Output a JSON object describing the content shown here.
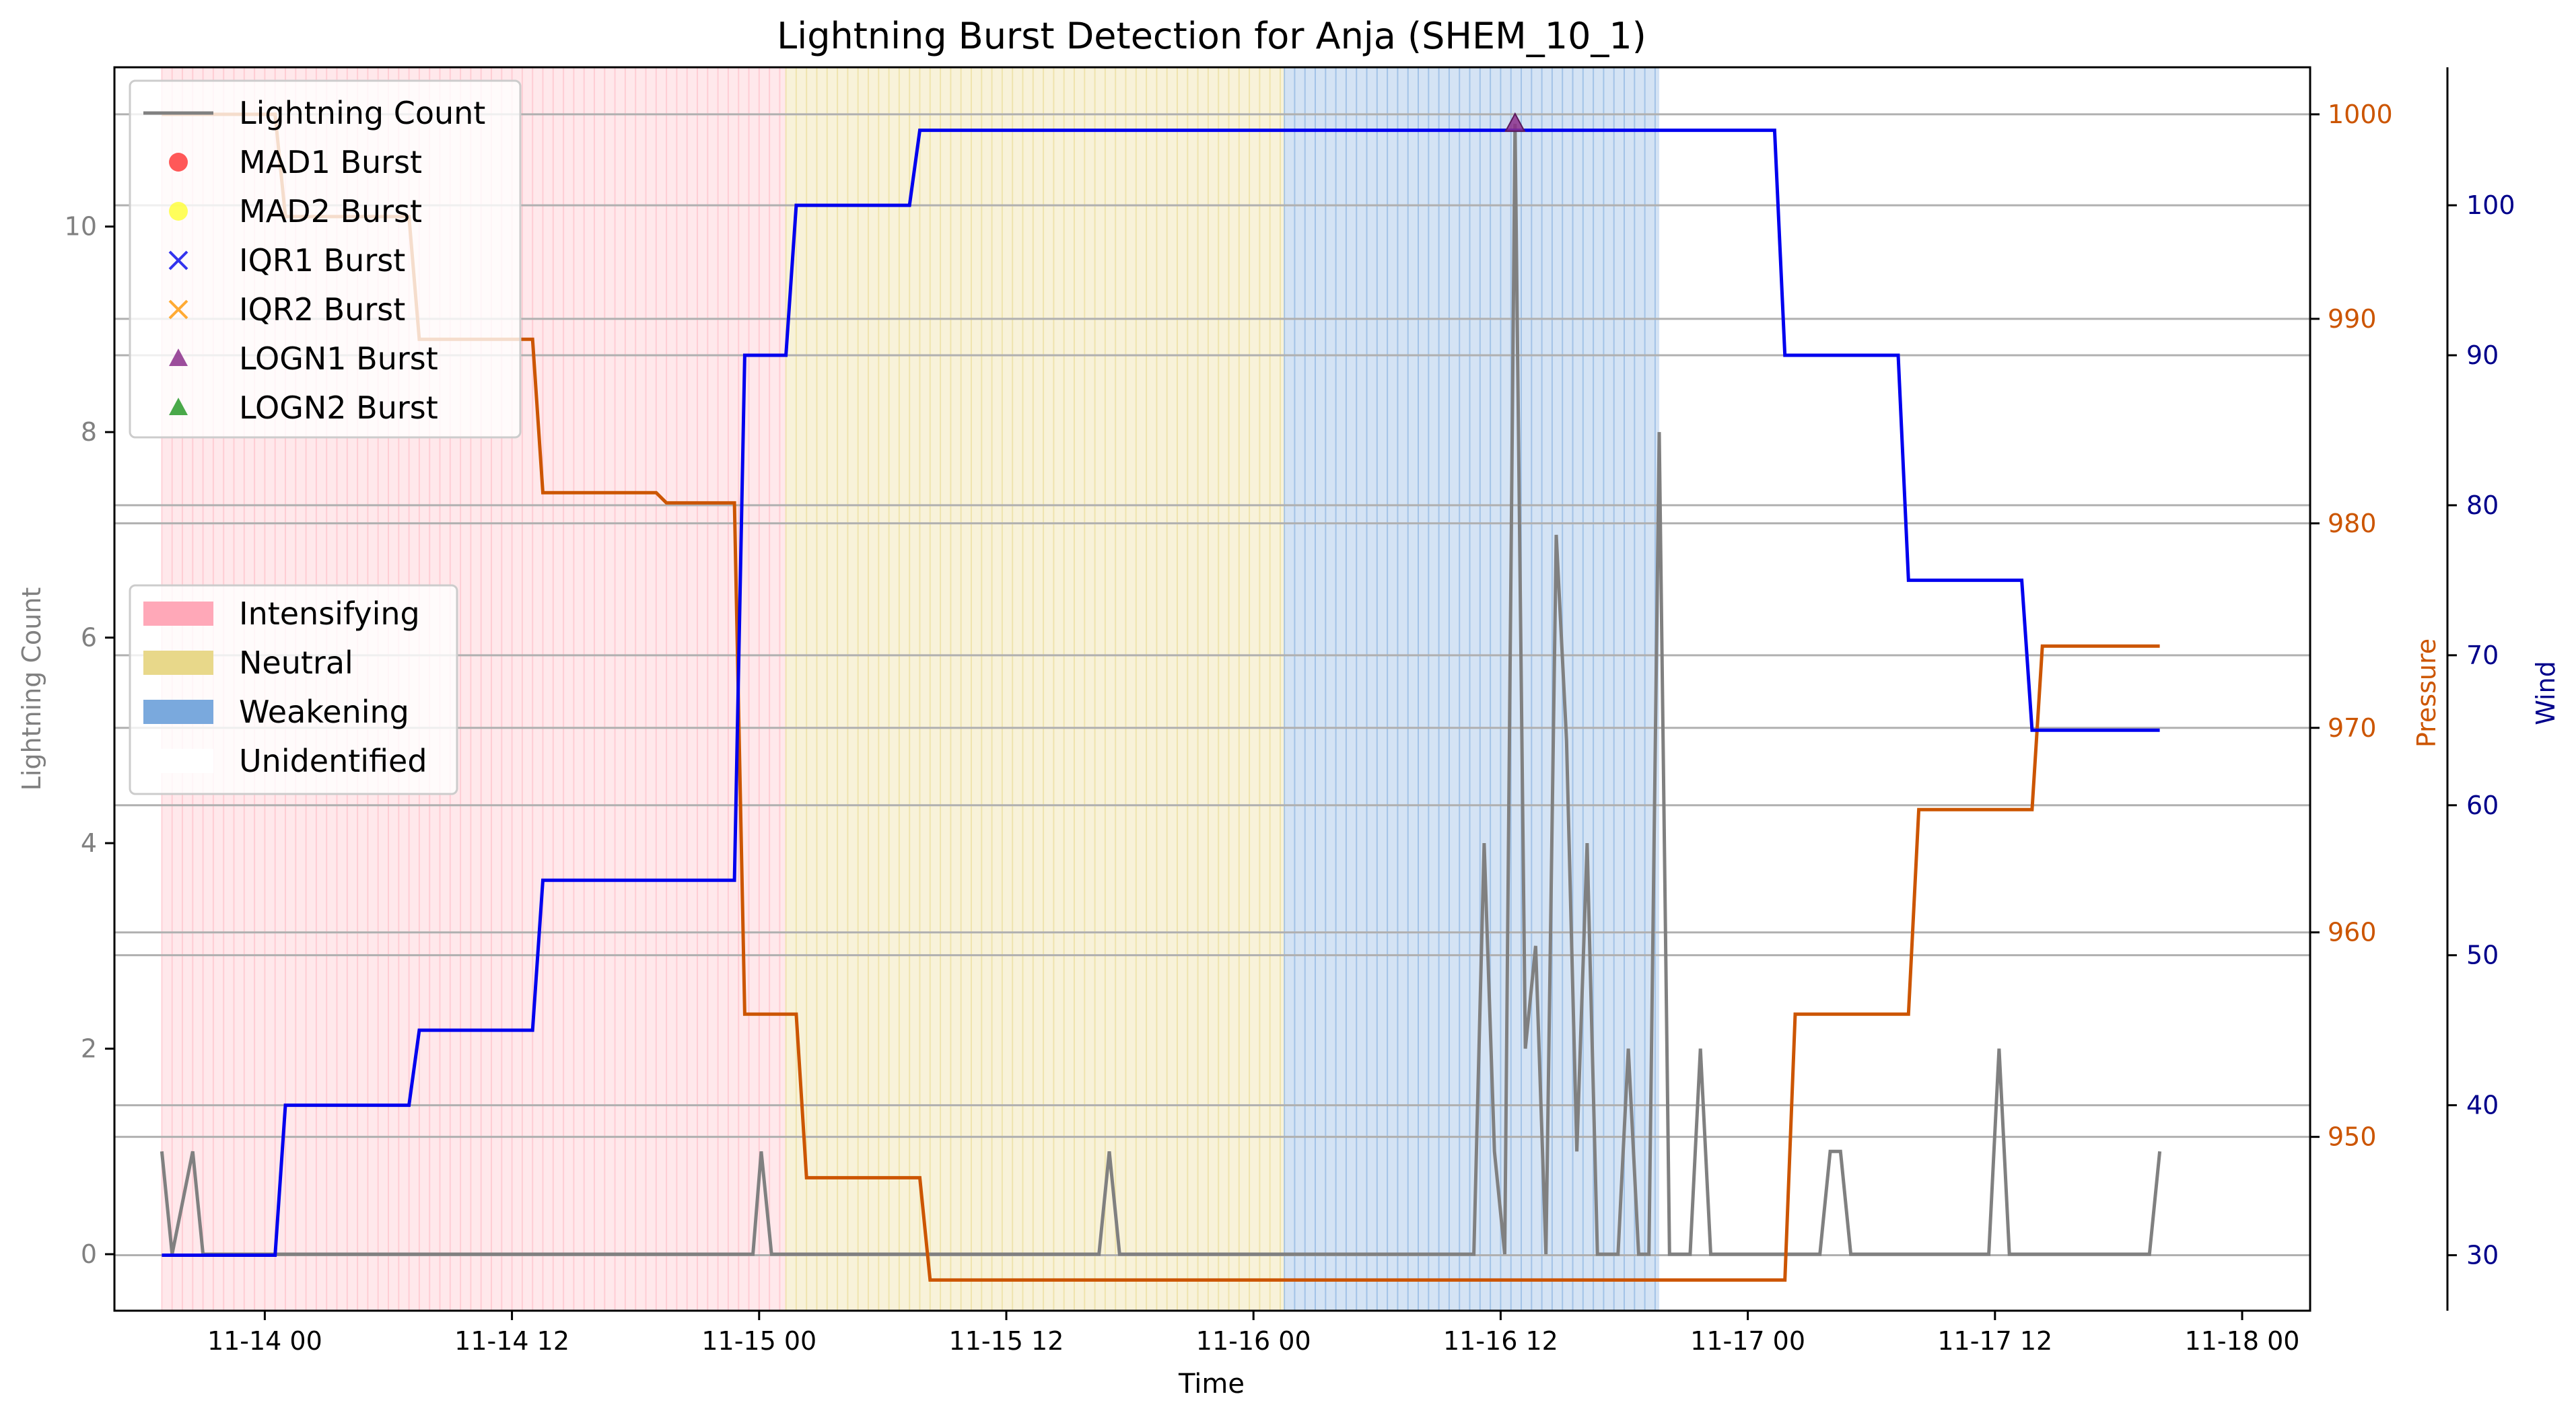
{
  "chart_data": {
    "type": "line",
    "title": "Lightning Burst Detection for Anja (SHEM_10_1)",
    "xlabel": "Time",
    "ylabel_left": "Lightning Count",
    "ylabel_right_pressure": "Pressure",
    "ylabel_right_wind": "Wind",
    "x_range_hours": [
      -7.3,
      99.3
    ],
    "x_ticks": [
      {
        "h": 0,
        "label": "11-14 00"
      },
      {
        "h": 12,
        "label": "11-14 12"
      },
      {
        "h": 24,
        "label": "11-15 00"
      },
      {
        "h": 36,
        "label": "11-15 12"
      },
      {
        "h": 48,
        "label": "11-16 00"
      },
      {
        "h": 60,
        "label": "11-16 12"
      },
      {
        "h": 72,
        "label": "11-17 00"
      },
      {
        "h": 84,
        "label": "11-17 12"
      },
      {
        "h": 96,
        "label": "11-18 00"
      }
    ],
    "x_start_label": "11-14 00",
    "ylim_left": [
      -0.55,
      11.55
    ],
    "yticks_left": [
      0,
      2,
      4,
      6,
      8,
      10
    ],
    "ylim_pressure": [
      941.5,
      1002.3
    ],
    "yticks_pressure": [
      950,
      960,
      970,
      980,
      990,
      1000
    ],
    "ylim_wind": [
      26.3,
      109.2
    ],
    "yticks_wind": [
      30,
      40,
      50,
      60,
      70,
      80,
      90,
      100
    ],
    "grid_horizontal": true,
    "colors": {
      "lightning": "#808080",
      "pressure": "#cc5500",
      "wind": "#0000ee",
      "pressure_axis": "#cc5500",
      "wind_axis": "#00008b",
      "left_axis": "#808080",
      "intensifying": "#ffb6c1",
      "neutral": "#e8d88a",
      "weakening": "#7aa9dd"
    },
    "phases": [
      {
        "name": "Intensifying",
        "start_h": -5,
        "end_h": 25.3
      },
      {
        "name": "Neutral",
        "start_h": 25.3,
        "end_h": 49.5
      },
      {
        "name": "Weakening",
        "start_h": 49.5,
        "end_h": 67.7
      }
    ],
    "series": [
      {
        "name": "Lightning Count",
        "x_hours": [
          -5,
          -4.5,
          -3.5,
          -3,
          -2.5,
          0,
          10,
          23.7,
          24.1,
          24.6,
          25,
          40,
          40.5,
          41,
          41.5,
          50,
          58.7,
          59.2,
          59.7,
          60.2,
          60.7,
          61.2,
          61.7,
          62.2,
          62.7,
          63.2,
          63.7,
          64.2,
          64.7,
          65.2,
          65.7,
          66.2,
          66.7,
          67.2,
          67.7,
          68.2,
          69.2,
          69.7,
          70.2,
          72,
          75.5,
          76,
          76.5,
          77,
          80,
          83.7,
          84.2,
          84.7,
          85.5,
          91.5,
          92
        ],
        "y": [
          1,
          0,
          1,
          0,
          0,
          0,
          0,
          0,
          1,
          0,
          0,
          0,
          0,
          1,
          0,
          0,
          0,
          4,
          1,
          0,
          11,
          2,
          3,
          0,
          7,
          5,
          1,
          4,
          0,
          0,
          0,
          2,
          0,
          0,
          8,
          0,
          0,
          2,
          0,
          0,
          0,
          1,
          1,
          0,
          0,
          0,
          2,
          0,
          0,
          0,
          1
        ]
      },
      {
        "name": "Pressure",
        "x_hours": [
          -5,
          0.5,
          1,
          7,
          7.5,
          13,
          13.5,
          19,
          19.5,
          22.8,
          23.3,
          25.8,
          26.3,
          31.8,
          32.3,
          73.8,
          74.3,
          79.8,
          80.3,
          85.8,
          86.3,
          92
        ],
        "y": [
          1000,
          1000,
          995,
          995,
          989,
          989,
          981.5,
          981.5,
          981,
          981,
          956,
          956,
          948,
          948,
          943,
          943,
          956,
          956,
          966,
          966,
          974,
          974
        ]
      },
      {
        "name": "Wind",
        "x_hours": [
          -5,
          0.5,
          1,
          7,
          7.5,
          13,
          13.5,
          19,
          19.5,
          22.8,
          23.3,
          25.3,
          25.8,
          31.3,
          31.8,
          73.3,
          73.8,
          79.3,
          79.8,
          85.3,
          85.8,
          92
        ],
        "y": [
          30,
          30,
          40,
          40,
          45,
          45,
          55,
          55,
          55,
          55,
          90,
          90,
          100,
          100,
          105,
          105,
          90,
          90,
          75,
          75,
          65,
          65
        ]
      }
    ],
    "bursts": [
      {
        "type": "LOGN1 Burst",
        "x_hour": 60.7,
        "y": 11
      }
    ],
    "legend_top": [
      {
        "label": "Lightning Count",
        "marker": "line",
        "color": "#808080"
      },
      {
        "label": "MAD1 Burst",
        "marker": "circle",
        "color": "#ff3030"
      },
      {
        "label": "MAD2 Burst",
        "marker": "circle",
        "color": "#ffff33"
      },
      {
        "label": "IQR1 Burst",
        "marker": "x",
        "color": "#3333ee"
      },
      {
        "label": "IQR2 Burst",
        "marker": "x",
        "color": "#ffaa33"
      },
      {
        "label": "LOGN1 Burst",
        "marker": "triangle",
        "color": "#8b2f8b"
      },
      {
        "label": "LOGN2 Burst",
        "marker": "triangle",
        "color": "#2a9a2a"
      }
    ],
    "legend_top_position": "upper-left",
    "legend_phase": [
      {
        "label": "Intensifying",
        "color": "#ffa8b8"
      },
      {
        "label": "Neutral",
        "color": "#e8d88a"
      },
      {
        "label": "Weakening",
        "color": "#7aa9dd"
      },
      {
        "label": "Unidentified",
        "color": "#ffffff"
      }
    ],
    "legend_phase_position": "center-left"
  }
}
